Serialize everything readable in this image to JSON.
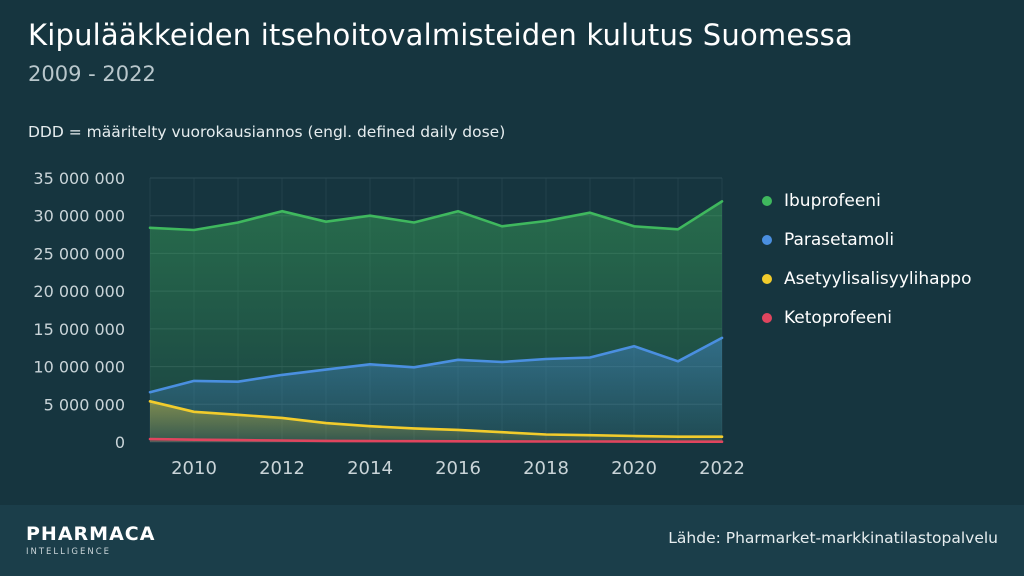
{
  "title": "Kipulääkkeiden itsehoitovalmisteiden kulutus Suomessa",
  "subtitle": "2009 - 2022",
  "note": "DDD = määritelty vuorokausiannos (engl. defined daily dose)",
  "source": "Lähde: Pharmarket-markkinatilastopalvelu",
  "logo": {
    "main": "PHARMACA",
    "sub": "INTELLIGENCE"
  },
  "colors": {
    "background": "#16353f",
    "footer": "#1b3e4a",
    "grid": "#2c4b55",
    "tick_text": "#c9d4d8"
  },
  "chart_data": {
    "type": "area",
    "x": [
      2009,
      2010,
      2011,
      2012,
      2013,
      2014,
      2015,
      2016,
      2017,
      2018,
      2019,
      2020,
      2021,
      2022
    ],
    "x_ticks": [
      2010,
      2012,
      2014,
      2016,
      2018,
      2020,
      2022
    ],
    "y_ticks": [
      {
        "value": 0,
        "label": "0"
      },
      {
        "value": 5000000,
        "label": "5 000 000"
      },
      {
        "value": 10000000,
        "label": "10 000 000"
      },
      {
        "value": 15000000,
        "label": "15 000 000"
      },
      {
        "value": 20000000,
        "label": "20 000 000"
      },
      {
        "value": 25000000,
        "label": "25 000 000"
      },
      {
        "value": 30000000,
        "label": "30 000 000"
      },
      {
        "value": 35000000,
        "label": "35 000 000"
      }
    ],
    "ylim": [
      0,
      35000000
    ],
    "grid": true,
    "legend": "right",
    "series": [
      {
        "name": "Ibuprofeeni",
        "color": "#3fb85e",
        "values": [
          28400000,
          28100000,
          29100000,
          30600000,
          29200000,
          30000000,
          29100000,
          30600000,
          28600000,
          29300000,
          30400000,
          28600000,
          28200000,
          31900000
        ]
      },
      {
        "name": "Parasetamoli",
        "color": "#4a8fe0",
        "values": [
          6600000,
          8100000,
          8000000,
          8900000,
          9600000,
          10300000,
          9900000,
          10900000,
          10600000,
          11000000,
          11200000,
          12700000,
          10700000,
          13800000
        ]
      },
      {
        "name": "Asetyylisalisyylihappo",
        "color": "#f2cc2c",
        "values": [
          5400000,
          4000000,
          3600000,
          3200000,
          2500000,
          2100000,
          1800000,
          1600000,
          1300000,
          1000000,
          900000,
          800000,
          700000,
          700000
        ]
      },
      {
        "name": "Ketoprofeeni",
        "color": "#e0455e",
        "values": [
          400000,
          300000,
          250000,
          200000,
          150000,
          120000,
          100000,
          90000,
          80000,
          70000,
          60000,
          50000,
          40000,
          40000
        ]
      }
    ]
  }
}
